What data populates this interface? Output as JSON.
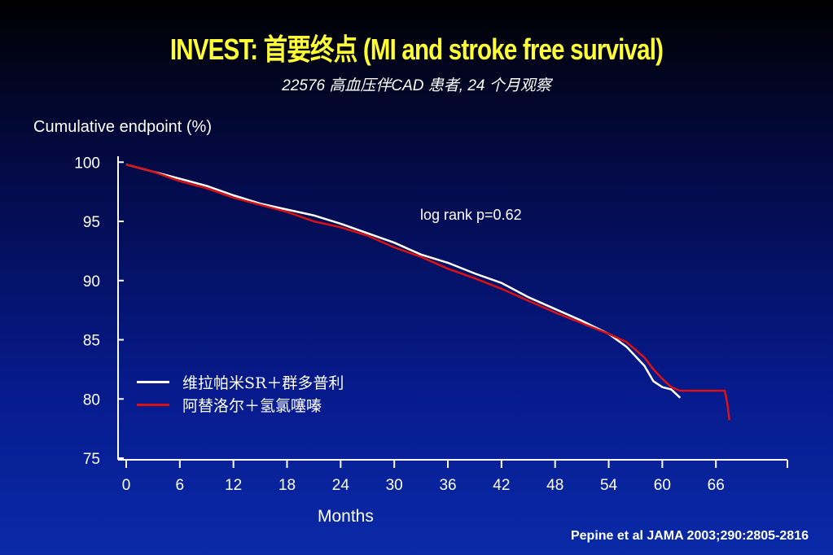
{
  "slide": {
    "title": "INVEST: 首要终点 (MI and stroke free survival)",
    "subtitle": "22576 高血压伴CAD 患者, 24 个月观察",
    "citation": "Pepine et al JAMA 2003;290:2805-2816"
  },
  "chart_data": {
    "type": "line",
    "ylabel": "Cumulative endpoint (%)",
    "xlabel": "Months",
    "annotation": "log rank p=0.62",
    "legend_placement": "bottom-left",
    "xlim": [
      0,
      74
    ],
    "ylim": [
      75,
      100.5
    ],
    "xticks": [
      0,
      6,
      12,
      18,
      24,
      30,
      36,
      42,
      48,
      54,
      60,
      66
    ],
    "yticks": [
      75,
      80,
      85,
      90,
      95,
      100
    ],
    "series": [
      {
        "name": "维拉帕米SR＋群多普利",
        "color": "#ffffff",
        "points": [
          [
            0,
            99.8
          ],
          [
            3,
            99.2
          ],
          [
            6,
            98.6
          ],
          [
            9,
            98.0
          ],
          [
            12,
            97.2
          ],
          [
            15,
            96.5
          ],
          [
            18,
            96.0
          ],
          [
            21,
            95.5
          ],
          [
            24,
            94.8
          ],
          [
            27,
            94.0
          ],
          [
            30,
            93.2
          ],
          [
            33,
            92.2
          ],
          [
            36,
            91.5
          ],
          [
            39,
            90.6
          ],
          [
            42,
            89.8
          ],
          [
            45,
            88.6
          ],
          [
            48,
            87.6
          ],
          [
            51,
            86.6
          ],
          [
            54,
            85.5
          ],
          [
            56,
            84.4
          ],
          [
            58,
            82.8
          ],
          [
            59,
            81.5
          ],
          [
            60,
            81.0
          ],
          [
            61,
            80.8
          ],
          [
            62,
            80.1
          ]
        ]
      },
      {
        "name": "阿替洛尔＋氢氯噻嗪",
        "color": "#dd1111",
        "points": [
          [
            0,
            99.8
          ],
          [
            3,
            99.2
          ],
          [
            6,
            98.4
          ],
          [
            9,
            97.8
          ],
          [
            12,
            97.0
          ],
          [
            15,
            96.4
          ],
          [
            18,
            95.8
          ],
          [
            21,
            95.0
          ],
          [
            24,
            94.5
          ],
          [
            27,
            93.8
          ],
          [
            30,
            92.8
          ],
          [
            33,
            92.0
          ],
          [
            36,
            91.0
          ],
          [
            39,
            90.2
          ],
          [
            42,
            89.3
          ],
          [
            45,
            88.3
          ],
          [
            48,
            87.3
          ],
          [
            51,
            86.4
          ],
          [
            54,
            85.5
          ],
          [
            56,
            84.8
          ],
          [
            58,
            83.5
          ],
          [
            59,
            82.5
          ],
          [
            60,
            81.7
          ],
          [
            61,
            81.0
          ],
          [
            62,
            80.7
          ],
          [
            65,
            80.7
          ],
          [
            67,
            80.7
          ],
          [
            67.3,
            79.5
          ],
          [
            67.5,
            78.2
          ]
        ]
      }
    ]
  }
}
